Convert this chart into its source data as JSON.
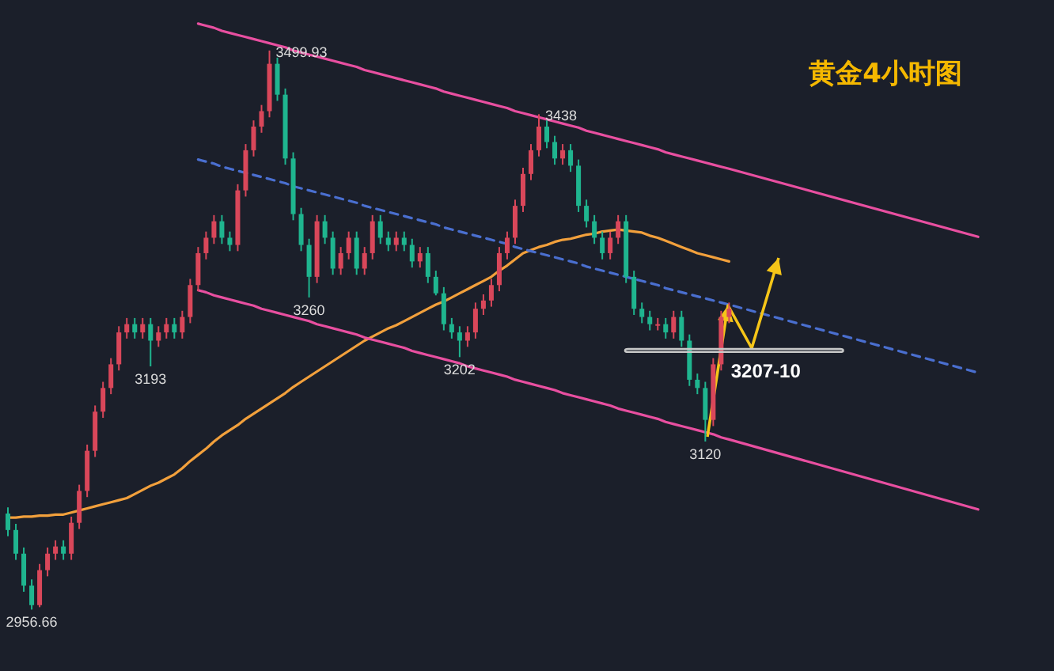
{
  "chart_data": {
    "type": "candlestick",
    "title": "黄金4小时图",
    "categories": [
      null,
      null,
      null,
      null,
      null,
      null,
      null,
      null,
      null,
      null,
      null,
      null,
      null,
      null,
      null,
      null,
      null,
      null,
      null,
      null,
      null,
      null,
      null,
      null,
      null,
      null,
      null,
      null,
      null,
      null,
      null,
      null,
      null,
      null,
      null,
      null,
      null,
      null,
      null,
      null,
      null,
      null,
      null,
      null,
      null,
      null,
      null,
      null,
      null,
      null,
      null,
      null,
      null,
      null,
      null,
      null,
      null,
      null,
      null,
      null,
      null,
      null,
      null,
      null,
      null,
      null,
      null,
      null,
      null,
      null,
      null,
      null,
      null,
      null,
      null,
      null,
      null,
      null,
      null,
      null,
      null,
      null,
      null,
      null,
      null,
      null,
      null,
      null,
      null,
      null,
      null,
      null
    ],
    "ohlc": [
      [
        3050,
        3056,
        3028,
        3034
      ],
      [
        3034,
        3040,
        3005,
        3011
      ],
      [
        3011,
        3017,
        2974,
        2980
      ],
      [
        2980,
        2986,
        2956.66,
        2961
      ],
      [
        2961,
        3001,
        2959,
        2995
      ],
      [
        2995,
        3017,
        2989,
        3011
      ],
      [
        3011,
        3024,
        3005,
        3018
      ],
      [
        3018,
        3024,
        3005,
        3011
      ],
      [
        3011,
        3047,
        3005,
        3041
      ],
      [
        3041,
        3078,
        3035,
        3072
      ],
      [
        3072,
        3117,
        3066,
        3111
      ],
      [
        3111,
        3155,
        3105,
        3149
      ],
      [
        3149,
        3178,
        3143,
        3172
      ],
      [
        3172,
        3201,
        3166,
        3195
      ],
      [
        3195,
        3232,
        3189,
        3226
      ],
      [
        3226,
        3240,
        3220,
        3234
      ],
      [
        3234,
        3240,
        3220,
        3226
      ],
      [
        3226,
        3240,
        3220,
        3234
      ],
      [
        3234,
        3240,
        3193,
        3218
      ],
      [
        3218,
        3232,
        3212,
        3226
      ],
      [
        3226,
        3240,
        3220,
        3234
      ],
      [
        3234,
        3240,
        3220,
        3226
      ],
      [
        3226,
        3247,
        3220,
        3241
      ],
      [
        3241,
        3278,
        3235,
        3272
      ],
      [
        3272,
        3309,
        3266,
        3303
      ],
      [
        3303,
        3324,
        3297,
        3318
      ],
      [
        3318,
        3340,
        3312,
        3334
      ],
      [
        3334,
        3340,
        3312,
        3318
      ],
      [
        3318,
        3324,
        3305,
        3311
      ],
      [
        3311,
        3370,
        3305,
        3364
      ],
      [
        3364,
        3409,
        3358,
        3403
      ],
      [
        3403,
        3432,
        3397,
        3426
      ],
      [
        3426,
        3447,
        3420,
        3441
      ],
      [
        3441,
        3499.93,
        3435,
        3487
      ],
      [
        3487,
        3493,
        3451,
        3457
      ],
      [
        3457,
        3463,
        3389,
        3395
      ],
      [
        3395,
        3401,
        3335,
        3341
      ],
      [
        3341,
        3347,
        3305,
        3311
      ],
      [
        3311,
        3317,
        3260,
        3280
      ],
      [
        3280,
        3340,
        3274,
        3334
      ],
      [
        3334,
        3340,
        3312,
        3318
      ],
      [
        3318,
        3324,
        3282,
        3288
      ],
      [
        3288,
        3309,
        3282,
        3303
      ],
      [
        3303,
        3324,
        3297,
        3318
      ],
      [
        3318,
        3324,
        3282,
        3288
      ],
      [
        3288,
        3309,
        3282,
        3303
      ],
      [
        3303,
        3340,
        3297,
        3334
      ],
      [
        3334,
        3340,
        3312,
        3318
      ],
      [
        3318,
        3324,
        3305,
        3311
      ],
      [
        3311,
        3324,
        3305,
        3318
      ],
      [
        3318,
        3324,
        3305,
        3311
      ],
      [
        3311,
        3317,
        3289,
        3295
      ],
      [
        3295,
        3309,
        3289,
        3303
      ],
      [
        3303,
        3309,
        3274,
        3280
      ],
      [
        3280,
        3286,
        3262,
        3264
      ],
      [
        3264,
        3270,
        3228,
        3234
      ],
      [
        3234,
        3240,
        3220,
        3226
      ],
      [
        3226,
        3232,
        3202,
        3218
      ],
      [
        3218,
        3232,
        3212,
        3226
      ],
      [
        3226,
        3255,
        3220,
        3249
      ],
      [
        3249,
        3263,
        3243,
        3257
      ],
      [
        3257,
        3278,
        3251,
        3272
      ],
      [
        3272,
        3309,
        3266,
        3303
      ],
      [
        3303,
        3324,
        3297,
        3318
      ],
      [
        3318,
        3355,
        3312,
        3349
      ],
      [
        3349,
        3386,
        3343,
        3380
      ],
      [
        3380,
        3409,
        3374,
        3403
      ],
      [
        3403,
        3438,
        3397,
        3426
      ],
      [
        3426,
        3432,
        3405,
        3411
      ],
      [
        3411,
        3417,
        3389,
        3395
      ],
      [
        3395,
        3409,
        3389,
        3403
      ],
      [
        3403,
        3409,
        3382,
        3388
      ],
      [
        3388,
        3394,
        3343,
        3349
      ],
      [
        3349,
        3355,
        3328,
        3334
      ],
      [
        3334,
        3340,
        3312,
        3318
      ],
      [
        3318,
        3324,
        3297,
        3303
      ],
      [
        3303,
        3324,
        3297,
        3318
      ],
      [
        3318,
        3340,
        3312,
        3334
      ],
      [
        3334,
        3340,
        3274,
        3280
      ],
      [
        3280,
        3286,
        3243,
        3249
      ],
      [
        3249,
        3255,
        3235,
        3241
      ],
      [
        3241,
        3247,
        3228,
        3234
      ],
      [
        3234,
        3240,
        3228,
        3234
      ],
      [
        3234,
        3240,
        3220,
        3226
      ],
      [
        3226,
        3247,
        3220,
        3241
      ],
      [
        3241,
        3247,
        3212,
        3218
      ],
      [
        3218,
        3224,
        3174,
        3180
      ],
      [
        3180,
        3186,
        3166,
        3172
      ],
      [
        3172,
        3178,
        3120,
        3141
      ],
      [
        3141,
        3201,
        3135,
        3195
      ],
      [
        3195,
        3247,
        3189,
        3241
      ],
      [
        3241,
        3255,
        3235,
        3249
      ]
    ],
    "colors": [
      "#1fb58f",
      "#1fb58f",
      "#1fb58f",
      "#1fb58f",
      "#d9475a",
      "#d9475a",
      "#d9475a",
      "#1fb58f",
      "#d9475a",
      "#d9475a",
      "#d9475a",
      "#d9475a",
      "#d9475a",
      "#d9475a",
      "#d9475a",
      "#d9475a",
      "#1fb58f",
      "#d9475a",
      "#1fb58f",
      "#d9475a",
      "#d9475a",
      "#1fb58f",
      "#d9475a",
      "#d9475a",
      "#d9475a",
      "#d9475a",
      "#d9475a",
      "#1fb58f",
      "#1fb58f",
      "#d9475a",
      "#d9475a",
      "#d9475a",
      "#d9475a",
      "#d9475a",
      "#1fb58f",
      "#1fb58f",
      "#1fb58f",
      "#1fb58f",
      "#1fb58f",
      "#d9475a",
      "#1fb58f",
      "#1fb58f",
      "#d9475a",
      "#d9475a",
      "#1fb58f",
      "#d9475a",
      "#d9475a",
      "#1fb58f",
      "#1fb58f",
      "#d9475a",
      "#1fb58f",
      "#1fb58f",
      "#d9475a",
      "#1fb58f",
      "#1fb58f",
      "#1fb58f",
      "#1fb58f",
      "#1fb58f",
      "#d9475a",
      "#d9475a",
      "#d9475a",
      "#d9475a",
      "#d9475a",
      "#d9475a",
      "#d9475a",
      "#d9475a",
      "#d9475a",
      "#d9475a",
      "#1fb58f",
      "#1fb58f",
      "#d9475a",
      "#1fb58f",
      "#1fb58f",
      "#1fb58f",
      "#1fb58f",
      "#1fb58f",
      "#d9475a",
      "#d9475a",
      "#1fb58f",
      "#1fb58f",
      "#1fb58f",
      "#1fb58f",
      "#d9475a",
      "#1fb58f",
      "#d9475a",
      "#1fb58f",
      "#1fb58f",
      "#1fb58f",
      "#1fb58f",
      "#d9475a",
      "#d9475a",
      "#d9475a"
    ],
    "series": [
      {
        "type": "line",
        "color": "#f2a03c",
        "line_style": "solid",
        "values": [
          3046,
          3046,
          3047,
          3047,
          3048,
          3048,
          3049,
          3049,
          3051,
          3053,
          3055,
          3057,
          3059,
          3061,
          3063,
          3065,
          3069,
          3073,
          3077,
          3080,
          3084,
          3088,
          3094,
          3101,
          3107,
          3113,
          3120,
          3126,
          3131,
          3136,
          3142,
          3147,
          3152,
          3157,
          3162,
          3167,
          3173,
          3178,
          3183,
          3188,
          3193,
          3198,
          3203,
          3208,
          3213,
          3218,
          3222,
          3226,
          3230,
          3233,
          3237,
          3241,
          3245,
          3249,
          3253,
          3256,
          3260,
          3264,
          3268,
          3272,
          3276,
          3280,
          3286,
          3291,
          3297,
          3303,
          3306,
          3309,
          3311,
          3314,
          3316,
          3317,
          3319,
          3321,
          3322,
          3324,
          3325,
          3326,
          3325,
          3324,
          3323,
          3320,
          3318,
          3315,
          3312,
          3309,
          3306,
          3303,
          3301,
          3299,
          3297,
          3295
        ]
      },
      {
        "type": "line",
        "color": "#e84fa0",
        "line_style": "solid",
        "values": [
          null,
          null,
          null,
          null,
          null,
          null,
          null,
          null,
          null,
          null,
          null,
          null,
          null,
          null,
          null,
          null,
          null,
          null,
          null,
          null,
          null,
          null,
          null,
          null,
          3526,
          3524,
          3522,
          3519,
          3517,
          3515,
          3513,
          3511,
          3509,
          3507,
          3505,
          3503,
          3500,
          3498,
          3496,
          3494,
          3492,
          3490,
          3488,
          3486,
          3484,
          3481,
          3479,
          3477,
          3475,
          3473,
          3471,
          3469,
          3467,
          3465,
          3463,
          3460,
          3458,
          3456,
          3454,
          3452,
          3450,
          3448,
          3446,
          3444,
          3441,
          3439,
          3437,
          3435,
          3433,
          3431,
          3429,
          3427,
          3425,
          3422,
          3420,
          3418,
          3416,
          3414,
          3412,
          3410,
          3408,
          3406,
          3404,
          3401,
          3399,
          3397,
          3395,
          3393,
          3391,
          3389,
          3387,
          3385
        ]
      },
      {
        "type": "line",
        "color": "#e84fa0",
        "line_style": "solid",
        "values": [
          null,
          null,
          null,
          null,
          null,
          null,
          null,
          null,
          null,
          null,
          null,
          null,
          null,
          null,
          null,
          null,
          null,
          null,
          null,
          null,
          null,
          null,
          null,
          null,
          3267,
          3265,
          3262,
          3260,
          3258,
          3256,
          3254,
          3252,
          3249,
          3247,
          3245,
          3243,
          3241,
          3239,
          3237,
          3234,
          3232,
          3230,
          3228,
          3226,
          3224,
          3221,
          3219,
          3217,
          3215,
          3213,
          3211,
          3208,
          3206,
          3204,
          3202,
          3200,
          3198,
          3196,
          3193,
          3191,
          3189,
          3187,
          3185,
          3183,
          3180,
          3178,
          3176,
          3174,
          3172,
          3170,
          3167,
          3165,
          3163,
          3161,
          3159,
          3157,
          3155,
          3152,
          3150,
          3148,
          3146,
          3144,
          3142,
          3139,
          3137,
          3135,
          3133,
          3131,
          3129,
          3127,
          3124,
          3122
        ]
      },
      {
        "type": "line",
        "color": "#4a6fd0",
        "line_style": "dashed",
        "values": [
          null,
          null,
          null,
          null,
          null,
          null,
          null,
          null,
          null,
          null,
          null,
          null,
          null,
          null,
          null,
          null,
          null,
          null,
          null,
          null,
          null,
          null,
          null,
          null,
          3394,
          3392,
          3390,
          3387,
          3385,
          3383,
          3381,
          3379,
          3377,
          3375,
          3373,
          3371,
          3368,
          3366,
          3364,
          3362,
          3360,
          3358,
          3356,
          3354,
          3352,
          3349,
          3347,
          3345,
          3343,
          3341,
          3339,
          3337,
          3335,
          3333,
          3331,
          3328,
          3326,
          3324,
          3322,
          3320,
          3318,
          3316,
          3314,
          3312,
          3309,
          3307,
          3305,
          3303,
          3301,
          3299,
          3297,
          3295,
          3293,
          3290,
          3288,
          3286,
          3284,
          3282,
          3280,
          3278,
          3276,
          3274,
          3272,
          3269,
          3267,
          3265,
          3263,
          3261,
          3259,
          3257,
          3255,
          3253
        ]
      }
    ],
    "annotations": [
      {
        "text": "3499.93",
        "y": 3499.93
      },
      {
        "text": "3438",
        "y": 3438
      },
      {
        "text": "3260",
        "y": 3260
      },
      {
        "text": "3193",
        "y": 3193
      },
      {
        "text": "3202",
        "y": 3202
      },
      {
        "text": "3120",
        "y": 3120
      },
      {
        "text": "2956.66",
        "y": 2956.66
      }
    ],
    "bands": [
      {
        "axis": "y",
        "from": 3207,
        "to": 3210,
        "label": "3207-10",
        "color": "#c8c8c8"
      }
    ],
    "ylim": [
      2897,
      3549
    ]
  }
}
